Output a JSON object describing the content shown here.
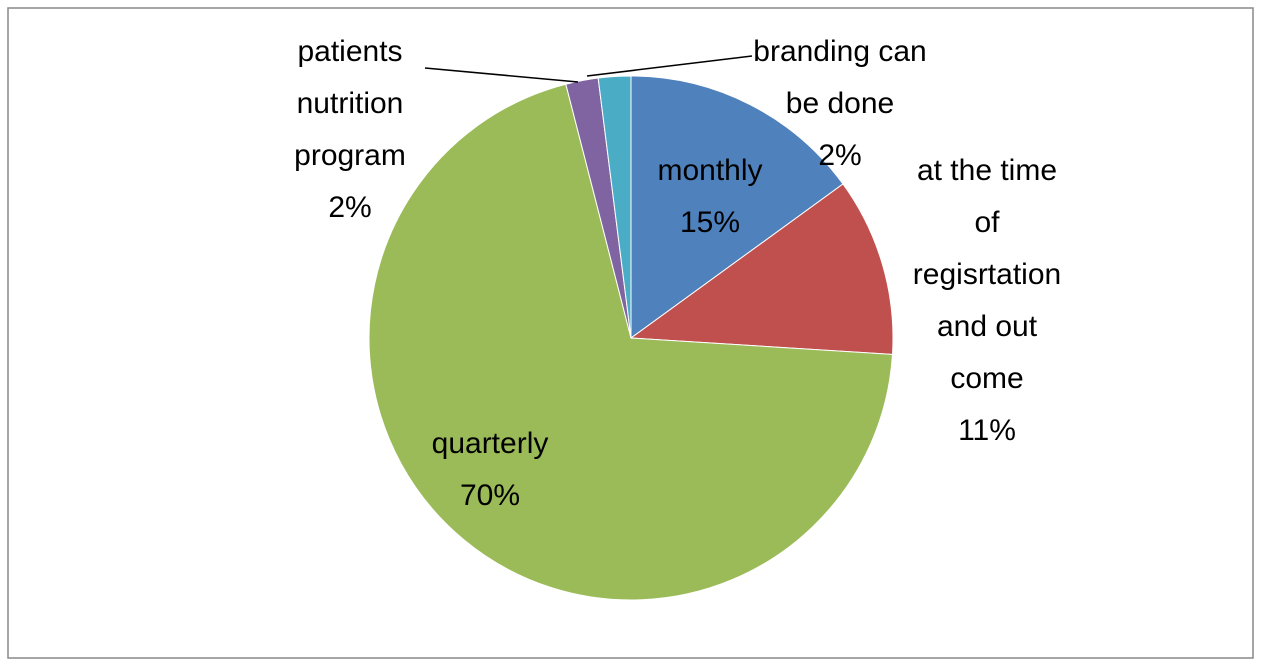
{
  "chart_data": {
    "type": "pie",
    "categories": [
      "monthly",
      "at the time of regisrtation and out come",
      "quarterly",
      "patients nutrition program",
      "branding can be done"
    ],
    "values": [
      15,
      11,
      70,
      2,
      2
    ],
    "value_labels": [
      "15%",
      "11%",
      "70%",
      "2%",
      "2%"
    ],
    "colors": [
      "#4f81bd",
      "#c0504d",
      "#9bbb59",
      "#8064a2",
      "#4bacc6"
    ]
  }
}
